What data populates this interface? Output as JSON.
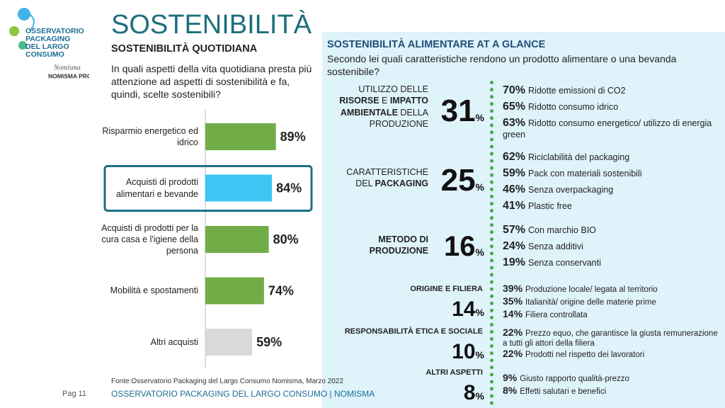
{
  "header": {
    "title": "SOSTENIBILITÀ",
    "logo_lines": [
      "OSSERVATORIO",
      "PACKAGING",
      "DEL LARGO",
      "CONSUMO"
    ],
    "brand": "Nomisma",
    "brand_sub": "NOMISMA PRO"
  },
  "chart_data": {
    "type": "bar",
    "orientation": "horizontal",
    "title": "SOSTENIBILITÀ QUOTIDIANA",
    "subtitle": "In quali aspetti della vita quotidiana presta più attenzione ad aspetti di sostenibilità e fa, quindi, scelte sostenibili?",
    "categories": [
      "Risparmio energetico ed idrico",
      "Acquisti di prodotti alimentari e bevande",
      "Acquisti di prodotti per la cura casa e l'igiene della persona",
      "Mobilità e spostamenti",
      "Altri acquisti"
    ],
    "values": [
      89,
      84,
      80,
      74,
      59
    ],
    "value_labels": [
      "89%",
      "84%",
      "80%",
      "74%",
      "59%"
    ],
    "colors": [
      "#70ad47",
      "#3fc5f4",
      "#70ad47",
      "#70ad47",
      "#d9d9d9"
    ],
    "highlight": 1,
    "source": "Fonte:Osservatorio Packaging del Largo Consumo Nomisma, Marzo 2022"
  },
  "glance": {
    "title": "SOSTENIBILITÀ ALIMENTARE AT A GLANCE",
    "question": "Secondo lei quali caratteristiche rendono un prodotto alimentare o una bevanda sostenibile?",
    "unit": "%",
    "groups": [
      {
        "label": [
          {
            "text": "UTILIZZO DELLE ",
            "bold": false
          },
          {
            "text": "RISORSE",
            "bold": true
          },
          {
            "text": " E ",
            "bold": false
          },
          {
            "text": "IMPATTO AMBIENTALE",
            "bold": true
          },
          {
            "text": " DELLA PRODUZIONE",
            "bold": false
          }
        ],
        "share": 31,
        "items": [
          {
            "value": 70,
            "label": "70%",
            "text": "Ridotte emissioni di CO2"
          },
          {
            "value": 65,
            "label": "65%",
            "text": "Ridotto consumo idrico"
          },
          {
            "value": 63,
            "label": "63%",
            "text": "Ridotto consumo energetico/ utilizzo di energia green"
          }
        ]
      },
      {
        "label": [
          {
            "text": "CARATTERISTICHE DEL ",
            "bold": false
          },
          {
            "text": "PACKAGING",
            "bold": true
          }
        ],
        "share": 25,
        "items": [
          {
            "value": 62,
            "label": "62%",
            "text": "Riciclabilità del packaging"
          },
          {
            "value": 59,
            "label": "59%",
            "text": "Pack con materiali sostenibili"
          },
          {
            "value": 46,
            "label": "46%",
            "text": "Senza overpackaging"
          },
          {
            "value": 41,
            "label": "41%",
            "text": "Plastic free"
          }
        ]
      },
      {
        "label": [
          {
            "text": "METODO DI PRODUZIONE",
            "bold": true
          }
        ],
        "share": 16,
        "items": [
          {
            "value": 57,
            "label": "57%",
            "text": "Con marchio BIO"
          },
          {
            "value": 24,
            "label": "24%",
            "text": "Senza additivi"
          },
          {
            "value": 19,
            "label": "19%",
            "text": "Senza conservanti"
          }
        ]
      },
      {
        "label": [
          {
            "text": "ORIGINE E FILIERA",
            "bold": true
          }
        ],
        "share": 14,
        "items": [
          {
            "value": 39,
            "label": "39%",
            "text": "Produzione locale/ legata al territorio"
          },
          {
            "value": 35,
            "label": "35%",
            "text": "Italianità/ origine delle materie prime"
          },
          {
            "value": 14,
            "label": "14%",
            "text": "Filiera controllata"
          }
        ]
      },
      {
        "label": [
          {
            "text": "RESPONSABILITÀ ETICA E SOCIALE",
            "bold": true
          }
        ],
        "share": 10,
        "items": [
          {
            "value": 22,
            "label": "22%",
            "text": "Prezzo equo, che garantisce la giusta remunerazione a tutti gli attori della filiera"
          },
          {
            "value": 22,
            "label": "22%",
            "text": "Prodotti nel rispetto dei lavoratori"
          }
        ]
      },
      {
        "label": [
          {
            "text": "ALTRI ASPETTI",
            "bold": true
          }
        ],
        "share": 8,
        "items": [
          {
            "value": 9,
            "label": "9%",
            "text": "Giusto rapporto qualità-prezzo"
          },
          {
            "value": 8,
            "label": "8%",
            "text": "Effetti salutari e benefici"
          }
        ]
      }
    ]
  },
  "footer": {
    "page": "Pag 11",
    "org": "OSSERVATORIO PACKAGING DEL LARGO CONSUMO | NOMISMA"
  }
}
